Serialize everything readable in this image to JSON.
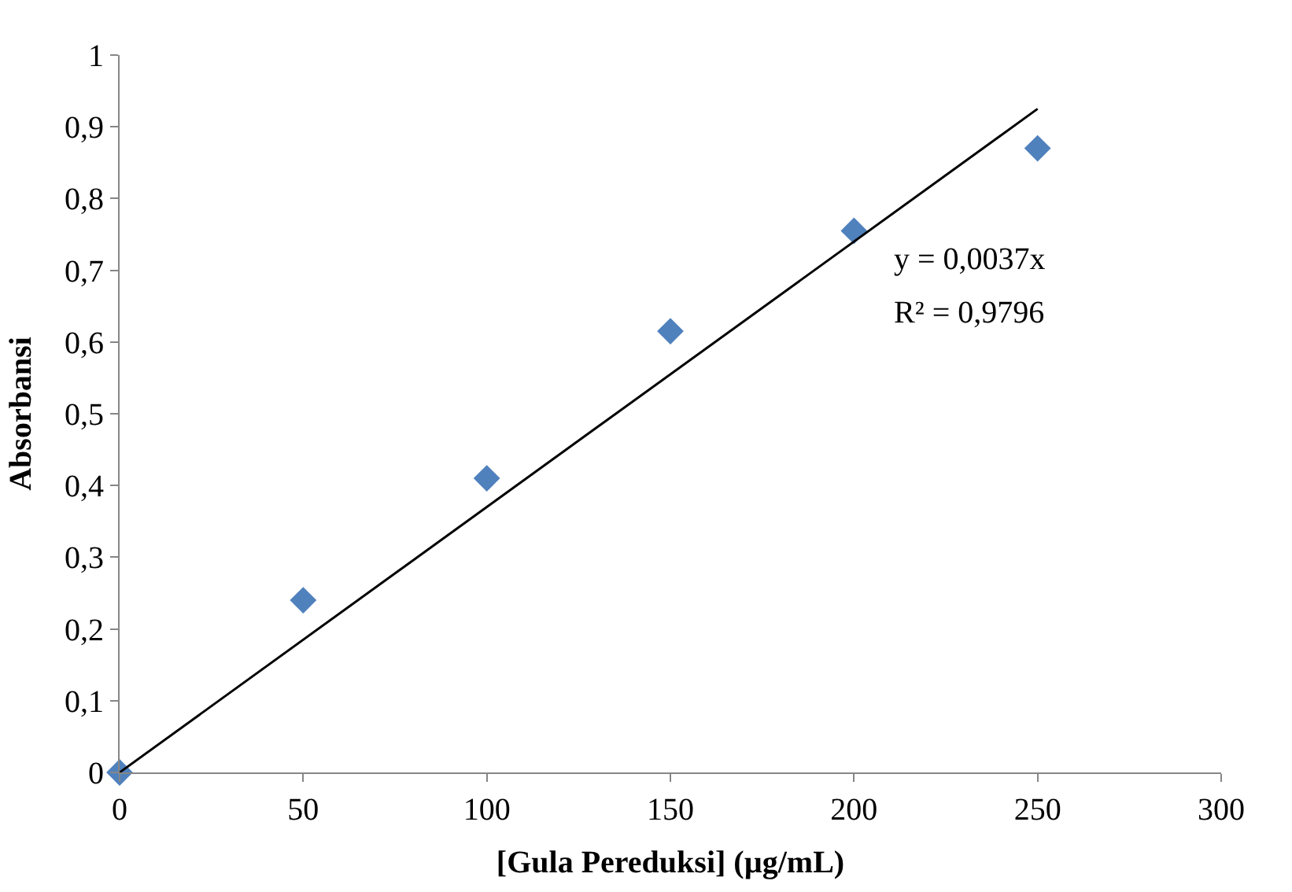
{
  "chart_data": {
    "type": "scatter",
    "xlabel": "[Gula Pereduksi] (µg/mL)",
    "ylabel": "Absorbansi",
    "x": [
      0,
      50,
      100,
      150,
      200,
      250
    ],
    "series": [
      {
        "color": "#4f81bd",
        "marker": "diamond",
        "values": [
          0,
          0.24,
          0.41,
          0.615,
          0.755,
          0.87
        ]
      },
      {
        "type": "line",
        "color": "#000000",
        "marker": "none",
        "line_style": "solid",
        "x": [
          0,
          250
        ],
        "values": [
          0,
          0.925
        ]
      }
    ],
    "xlim": [
      0,
      300
    ],
    "xticks": [
      0,
      50,
      100,
      150,
      200,
      250,
      300
    ],
    "ylim": [
      0,
      1
    ],
    "yticks": [
      0,
      {
        "value": 0.1,
        "label": "0,1"
      },
      {
        "value": 0.2,
        "label": "0,2"
      },
      {
        "value": 0.3,
        "label": "0,3"
      },
      {
        "value": 0.4,
        "label": "0,4"
      },
      {
        "value": 0.5,
        "label": "0,5"
      },
      {
        "value": 0.6,
        "label": "0,6"
      },
      {
        "value": 0.7,
        "label": "0,7"
      },
      {
        "value": 0.8,
        "label": "0,8"
      },
      {
        "value": 0.9,
        "label": "0,9"
      },
      1
    ],
    "annotations": [
      "y = 0,0037x",
      "R² = 0,9796"
    ]
  }
}
